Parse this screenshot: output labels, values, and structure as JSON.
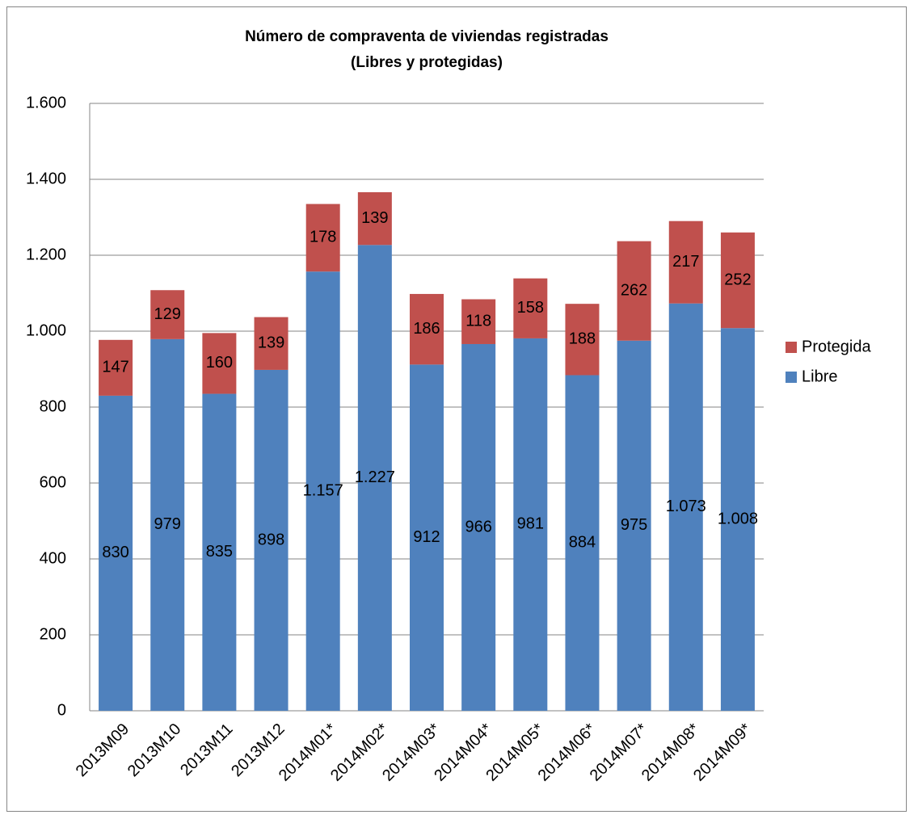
{
  "chart_data": {
    "type": "stacked_bar",
    "title": "Número de compraventa de viviendas registradas",
    "subtitle": "(Libres y protegidas)",
    "categories": [
      "2013M09",
      "2013M10",
      "2013M11",
      "2013M12",
      "2014M01*",
      "2014M02*",
      "2014M03*",
      "2014M04*",
      "2014M05*",
      "2014M06*",
      "2014M07*",
      "2014M08*",
      "2014M09*"
    ],
    "series": [
      {
        "name": "Libre",
        "color": "#4f81bd",
        "values": [
          830,
          979,
          835,
          898,
          1157,
          1227,
          912,
          966,
          981,
          884,
          975,
          1073,
          1008
        ],
        "value_labels": [
          "830",
          "979",
          "835",
          "898",
          "1.157",
          "1.227",
          "912",
          "966",
          "981",
          "884",
          "975",
          "1.073",
          "1.008"
        ]
      },
      {
        "name": "Protegida",
        "color": "#c0504d",
        "values": [
          147,
          129,
          160,
          139,
          178,
          139,
          186,
          118,
          158,
          188,
          262,
          217,
          252
        ]
      }
    ],
    "ylim": [
      0,
      1600
    ],
    "yticks": [
      0,
      200,
      400,
      600,
      800,
      {
        "value": 1000,
        "label": "1.000"
      },
      {
        "value": 1200,
        "label": "1.200"
      },
      {
        "value": 1400,
        "label": "1.400"
      },
      {
        "value": 1600,
        "label": "1.600"
      }
    ],
    "grid": true,
    "legend": "right"
  }
}
